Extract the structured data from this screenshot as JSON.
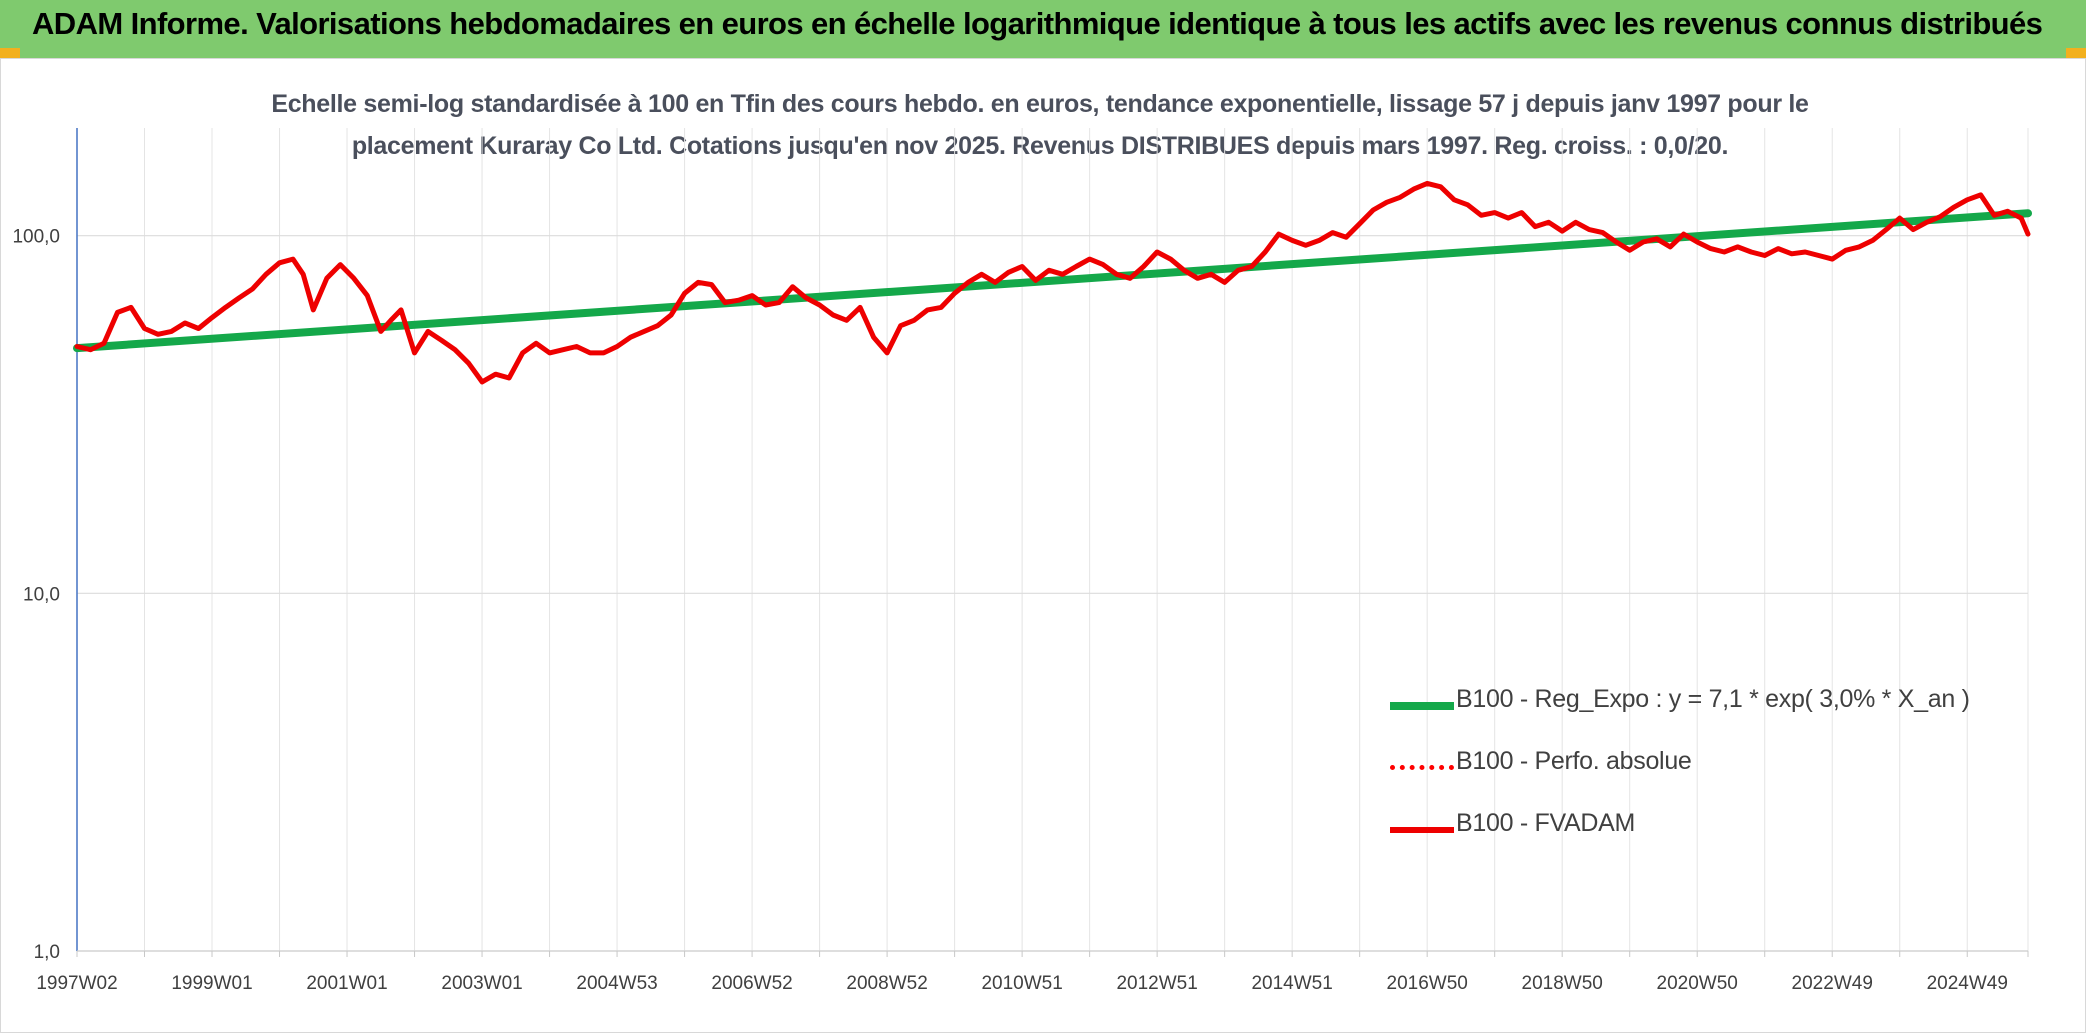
{
  "header": {
    "title": "ADAM Informe. Valorisations hebdomadaires en euros en échelle logarithmique identique à tous les actifs avec les revenus connus distribués",
    "background": "#7fca6e"
  },
  "chart_data": {
    "type": "line",
    "title": "Echelle semi-log standardisée à 100 en Tfin des cours hebdo. en euros, tendance exponentielle, lissage 57 j depuis janv 1997 pour le placement Kuraray Co Ltd. Cotations jusqu'en nov 2025. Revenus DISTRIBUES depuis mars 1997. Reg. croiss. : 0,0/20.",
    "title_lines": [
      "Echelle semi-log standardisée à 100 en Tfin des cours hebdo. en euros, tendance exponentielle, lissage 57 j depuis janv 1997 pour le",
      "placement Kuraray Co Ltd. Cotations jusqu'en nov 2025. Revenus DISTRIBUES depuis mars 1997. Reg. croiss. : 0,0/20."
    ],
    "y_scale": "log",
    "ylim": [
      1,
      200
    ],
    "xlim": [
      1997.0,
      2025.9
    ],
    "y_ticks": [
      {
        "value": 1,
        "label": "1,0"
      },
      {
        "value": 10,
        "label": "10,0"
      },
      {
        "value": 100,
        "label": "100,0"
      }
    ],
    "x_ticks": [
      {
        "value": 1997.0,
        "label": "1997W02"
      },
      {
        "value": 1999.0,
        "label": "1999W01"
      },
      {
        "value": 2001.0,
        "label": "2001W01"
      },
      {
        "value": 2003.0,
        "label": "2003W01"
      },
      {
        "value": 2005.0,
        "label": "2004W53"
      },
      {
        "value": 2007.0,
        "label": "2006W52"
      },
      {
        "value": 2009.0,
        "label": "2008W52"
      },
      {
        "value": 2011.0,
        "label": "2010W51"
      },
      {
        "value": 2013.0,
        "label": "2012W51"
      },
      {
        "value": 2015.0,
        "label": "2014W51"
      },
      {
        "value": 2017.0,
        "label": "2016W50"
      },
      {
        "value": 2019.0,
        "label": "2018W50"
      },
      {
        "value": 2021.0,
        "label": "2020W50"
      },
      {
        "value": 2023.0,
        "label": "2022W49"
      },
      {
        "value": 2025.0,
        "label": "2024W49"
      }
    ],
    "minor_gridlines_x": [
      1998.0,
      2000.0,
      2002.0,
      2004.0,
      2006.0,
      2008.0,
      2010.0,
      2012.0,
      2014.0,
      2016.0,
      2018.0,
      2020.0,
      2022.0,
      2024.0,
      2025.9
    ],
    "grid": true,
    "legend_position": "bottom-right",
    "series": [
      {
        "name": "B100 - Reg_Expo : y = 7,1 * exp( 3,0% *  X_an )",
        "color": "#14a84a",
        "style": "solid",
        "x": [
          1997.0,
          2025.9
        ],
        "y": [
          48.5,
          115.5
        ]
      },
      {
        "name": "B100 - Perfo. absolue",
        "color": "#ff0000",
        "style": "dotted",
        "x": [],
        "y": []
      },
      {
        "name": "B100 - FVADAM",
        "color": "#ee0000",
        "style": "solid",
        "x": [
          1997.0,
          1997.2,
          1997.4,
          1997.6,
          1997.8,
          1998.0,
          1998.2,
          1998.4,
          1998.6,
          1998.8,
          1999.0,
          1999.2,
          1999.4,
          1999.6,
          1999.8,
          2000.0,
          2000.2,
          2000.35,
          2000.5,
          2000.7,
          2000.9,
          2001.1,
          2001.3,
          2001.5,
          2001.65,
          2001.8,
          2002.0,
          2002.2,
          2002.4,
          2002.6,
          2002.8,
          2003.0,
          2003.2,
          2003.4,
          2003.6,
          2003.8,
          2004.0,
          2004.2,
          2004.4,
          2004.6,
          2004.8,
          2005.0,
          2005.2,
          2005.4,
          2005.6,
          2005.8,
          2006.0,
          2006.2,
          2006.4,
          2006.6,
          2006.8,
          2007.0,
          2007.2,
          2007.4,
          2007.6,
          2007.8,
          2008.0,
          2008.2,
          2008.4,
          2008.6,
          2008.8,
          2009.0,
          2009.2,
          2009.4,
          2009.6,
          2009.8,
          2010.0,
          2010.2,
          2010.4,
          2010.6,
          2010.8,
          2011.0,
          2011.2,
          2011.4,
          2011.6,
          2011.8,
          2012.0,
          2012.2,
          2012.4,
          2012.6,
          2012.8,
          2013.0,
          2013.2,
          2013.4,
          2013.6,
          2013.8,
          2014.0,
          2014.2,
          2014.4,
          2014.6,
          2014.8,
          2015.0,
          2015.2,
          2015.4,
          2015.6,
          2015.8,
          2016.0,
          2016.2,
          2016.4,
          2016.6,
          2016.8,
          2017.0,
          2017.2,
          2017.4,
          2017.6,
          2017.8,
          2018.0,
          2018.2,
          2018.4,
          2018.6,
          2018.8,
          2019.0,
          2019.2,
          2019.4,
          2019.6,
          2019.8,
          2020.0,
          2020.2,
          2020.4,
          2020.6,
          2020.8,
          2021.0,
          2021.2,
          2021.4,
          2021.6,
          2021.8,
          2022.0,
          2022.2,
          2022.4,
          2022.6,
          2022.8,
          2023.0,
          2023.2,
          2023.4,
          2023.6,
          2023.8,
          2024.0,
          2024.2,
          2024.4,
          2024.6,
          2024.8,
          2025.0,
          2025.2,
          2025.4,
          2025.6,
          2025.8,
          2025.9
        ],
        "y": [
          49,
          48,
          50,
          61,
          63,
          55,
          53,
          54,
          57,
          55,
          59,
          63,
          67,
          71,
          78,
          84,
          86,
          78,
          62,
          76,
          83,
          76,
          68,
          54,
          58,
          62,
          47,
          54,
          51,
          48,
          44,
          39,
          41,
          40,
          47,
          50,
          47,
          48,
          49,
          47,
          47,
          49,
          52,
          54,
          56,
          60,
          69,
          74,
          73,
          65,
          66,
          68,
          64,
          65,
          72,
          67,
          64,
          60,
          58,
          63,
          52,
          47,
          56,
          58,
          62,
          63,
          69,
          74,
          78,
          74,
          79,
          82,
          75,
          80,
          78,
          82,
          86,
          83,
          78,
          76,
          82,
          90,
          86,
          80,
          76,
          78,
          74,
          80,
          82,
          90,
          101,
          97,
          94,
          97,
          102,
          99,
          108,
          118,
          124,
          128,
          135,
          140,
          137,
          126,
          122,
          114,
          116,
          112,
          116,
          106,
          109,
          103,
          109,
          104,
          102,
          96,
          91,
          96,
          98,
          93,
          101,
          96,
          92,
          90,
          93,
          90,
          88,
          92,
          89,
          90,
          88,
          86,
          91,
          93,
          97,
          104,
          112,
          104,
          109,
          113,
          120,
          126,
          130,
          114,
          117,
          112,
          101
        ]
      }
    ]
  }
}
